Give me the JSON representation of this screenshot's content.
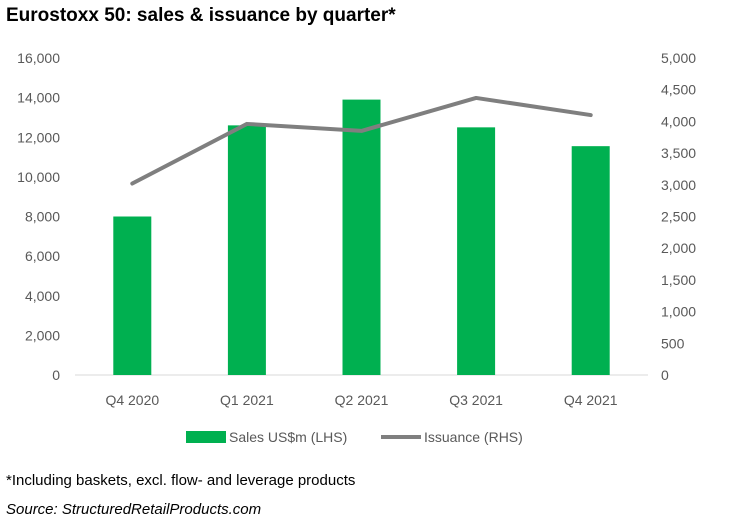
{
  "chart_data": {
    "type": "bar",
    "title": "Eurostoxx 50: sales & issuance by quarter*",
    "categories": [
      "Q4 2020",
      "Q1 2021",
      "Q2 2021",
      "Q3 2021",
      "Q4 2021"
    ],
    "series": [
      {
        "name": "Sales US$m (LHS)",
        "type": "bar",
        "axis": "left",
        "color": "#00b050",
        "values": [
          8000,
          12600,
          13900,
          12500,
          11550
        ]
      },
      {
        "name": "Issuance (RHS)",
        "type": "line",
        "axis": "right",
        "color": "#7f7f7f",
        "values": [
          3020,
          3960,
          3850,
          4370,
          4100
        ]
      }
    ],
    "y_left": {
      "min": 0,
      "max": 16000,
      "step": 2000,
      "ticks": [
        "0",
        "2,000",
        "4,000",
        "6,000",
        "8,000",
        "10,000",
        "12,000",
        "14,000",
        "16,000"
      ]
    },
    "y_right": {
      "min": 0,
      "max": 5000,
      "step": 500,
      "ticks": [
        "0",
        "500",
        "1,000",
        "1,500",
        "2,000",
        "2,500",
        "3,000",
        "3,500",
        "4,000",
        "4,500",
        "5,000"
      ]
    },
    "grid": false,
    "legend_position": "bottom"
  },
  "footnote": "*Including baskets, excl. flow- and leverage products",
  "source": "Source: StructuredRetailProducts.com"
}
